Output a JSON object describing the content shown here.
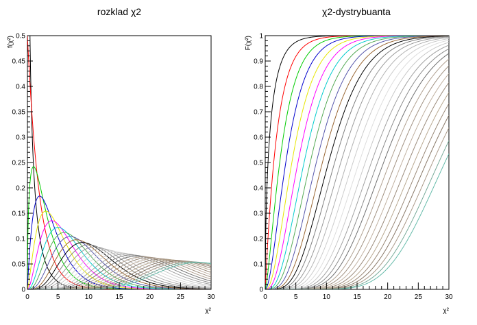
{
  "chart_data": [
    {
      "type": "line",
      "title": "rozklad  χ2",
      "xlabel": "χ²",
      "ylabel": "f(χ²)",
      "xlim": [
        0,
        30
      ],
      "ylim": [
        0,
        0.5
      ],
      "xticks": [
        "0",
        "5",
        "10",
        "15",
        "20",
        "25",
        "30"
      ],
      "yticks": [
        "0",
        "0.05",
        "0.1",
        "0.15",
        "0.2",
        "0.25",
        "0.3",
        "0.35",
        "0.4",
        "0.45",
        "0.5"
      ],
      "grid": false,
      "function": "chi-square pdf",
      "degrees_of_freedom": [
        1,
        2,
        3,
        4,
        5,
        6,
        7,
        8,
        9,
        10,
        11,
        12,
        13,
        14,
        15,
        16,
        17,
        18,
        19,
        20,
        21,
        22,
        23,
        24,
        25,
        26,
        27,
        28,
        29,
        30
      ]
    },
    {
      "type": "line",
      "title": "χ2-dystrybuanta",
      "xlabel": "χ²",
      "ylabel": "F(χ²)",
      "xlim": [
        0,
        30
      ],
      "ylim": [
        0,
        1
      ],
      "xticks": [
        "0",
        "5",
        "10",
        "15",
        "20",
        "25",
        "30"
      ],
      "yticks": [
        "0",
        "0.1",
        "0.2",
        "0.3",
        "0.4",
        "0.5",
        "0.6",
        "0.7",
        "0.8",
        "0.9",
        "1"
      ],
      "grid": false,
      "function": "chi-square cdf",
      "degrees_of_freedom": [
        1,
        2,
        3,
        4,
        5,
        6,
        7,
        8,
        9,
        10,
        11,
        12,
        13,
        14,
        15,
        16,
        17,
        18,
        19,
        20,
        21,
        22,
        23,
        24,
        25,
        26,
        27,
        28,
        29,
        30
      ]
    }
  ],
  "colors": {
    "series": [
      "#000000",
      "#ff0000",
      "#00cc00",
      "#0000cc",
      "#e6e600",
      "#ff00ff",
      "#00cccc",
      "#55aa55",
      "#5555aa",
      "#996633",
      "#000000",
      "#7f7f7f",
      "#999999",
      "#b3b3b3",
      "#cccccc",
      "#dddddd",
      "#c8c8c8",
      "#a0a0a0",
      "#8c8c8c",
      "#707070",
      "#b0a090",
      "#a09080",
      "#c0b0a0",
      "#9a8a7a",
      "#b8a890",
      "#998877",
      "#887766",
      "#aa9988",
      "#77aa99",
      "#66bbaa"
    ],
    "frame": "#000000",
    "background": "#ffffff"
  }
}
